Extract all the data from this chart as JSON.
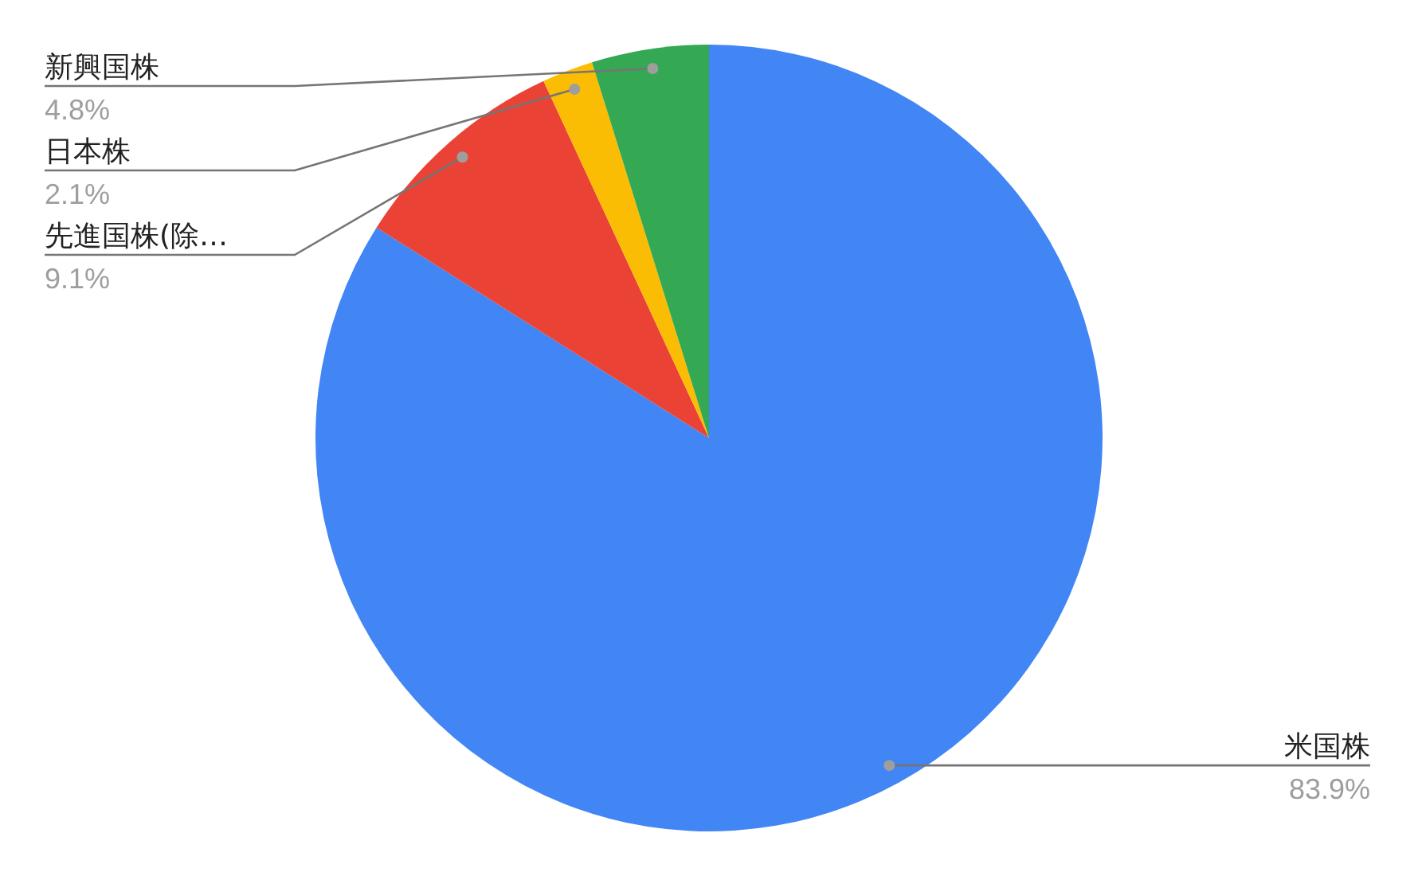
{
  "chart_data": {
    "type": "pie",
    "categories": [
      "米国株",
      "先進国株(除…",
      "日本株",
      "新興国株"
    ],
    "values": [
      83.9,
      9.1,
      2.1,
      4.8
    ],
    "value_labels": [
      "83.9%",
      "9.1%",
      "2.1%",
      "4.8%"
    ],
    "colors": [
      "#4285f4",
      "#ea4335",
      "#fbbc04",
      "#34a853"
    ]
  }
}
